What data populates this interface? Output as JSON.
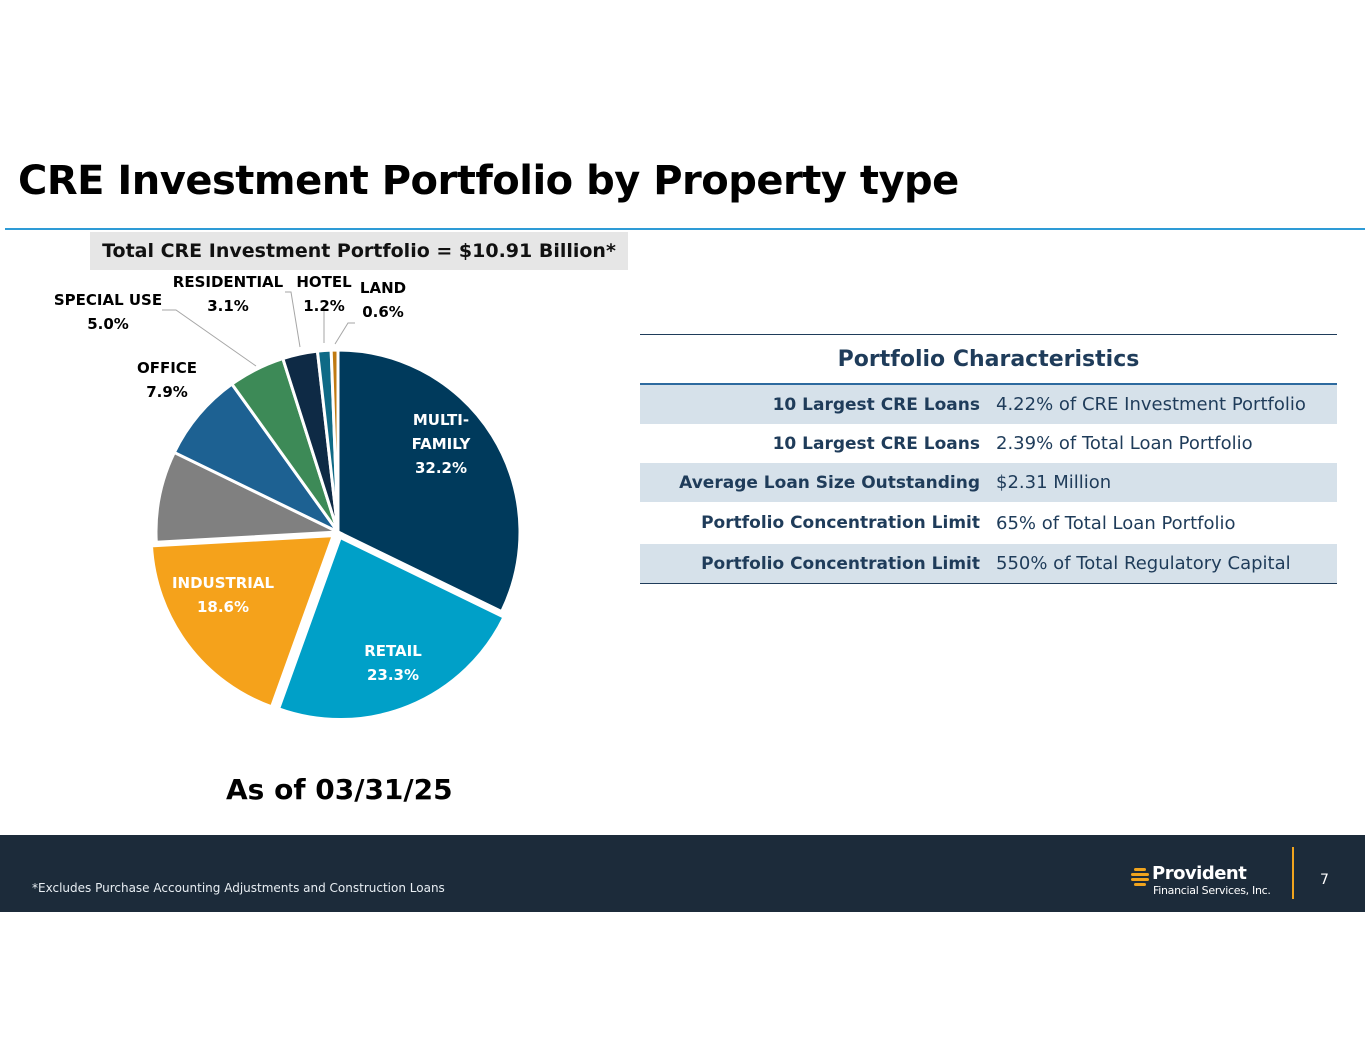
{
  "page": {
    "title": "CRE Investment Portfolio by Property type",
    "total_label": "Total CRE Investment Portfolio = $10.91 Billion*",
    "as_of": "As of 03/31/25"
  },
  "chart_data": {
    "type": "pie",
    "title": "",
    "slices": [
      {
        "label": "MULTI-FAMILY",
        "value": 32.2,
        "display": "32.2%",
        "color": "#003a5c",
        "label_style": "inside"
      },
      {
        "label": "RETAIL",
        "value": 23.3,
        "display": "23.3%",
        "color": "#00a0c8",
        "label_style": "inside"
      },
      {
        "label": "INDUSTRIAL",
        "value": 18.6,
        "display": "18.6%",
        "color": "#f5a21b",
        "label_style": "inside"
      },
      {
        "label": "",
        "value": 8.1,
        "display": "",
        "color": "#808080",
        "label_style": "none"
      },
      {
        "label": "OFFICE",
        "value": 7.9,
        "display": "7.9%",
        "color": "#1d6192",
        "label_style": "outside"
      },
      {
        "label": "SPECIAL USE",
        "value": 5.0,
        "display": "5.0%",
        "color": "#3d8a57",
        "label_style": "outside"
      },
      {
        "label": "RESIDENTIAL",
        "value": 3.1,
        "display": "3.1%",
        "color": "#0e2a45",
        "label_style": "outside"
      },
      {
        "label": "HOTEL",
        "value": 1.2,
        "display": "1.2%",
        "color": "#0f6a86",
        "label_style": "outside"
      },
      {
        "label": "LAND",
        "value": 0.6,
        "display": "0.6%",
        "color": "#c07a12",
        "label_style": "outside"
      }
    ]
  },
  "characteristics": {
    "title": "Portfolio Characteristics",
    "rows": [
      {
        "label": "10 Largest CRE Loans",
        "value": "4.22% of CRE Investment Portfolio"
      },
      {
        "label": "10 Largest CRE Loans",
        "value": "2.39% of Total Loan Portfolio"
      },
      {
        "label": "Average Loan Size Outstanding",
        "value": "$2.31 Million"
      },
      {
        "label": "Portfolio Concentration Limit",
        "value": "65% of Total Loan Portfolio"
      },
      {
        "label": "Portfolio Concentration Limit",
        "value": "550% of Total Regulatory Capital"
      }
    ]
  },
  "footer": {
    "footnote": "*Excludes Purchase Accounting Adjustments and Construction Loans",
    "logo_name": "Provident",
    "logo_sub": "Financial Services, Inc.",
    "page_number": "7"
  }
}
